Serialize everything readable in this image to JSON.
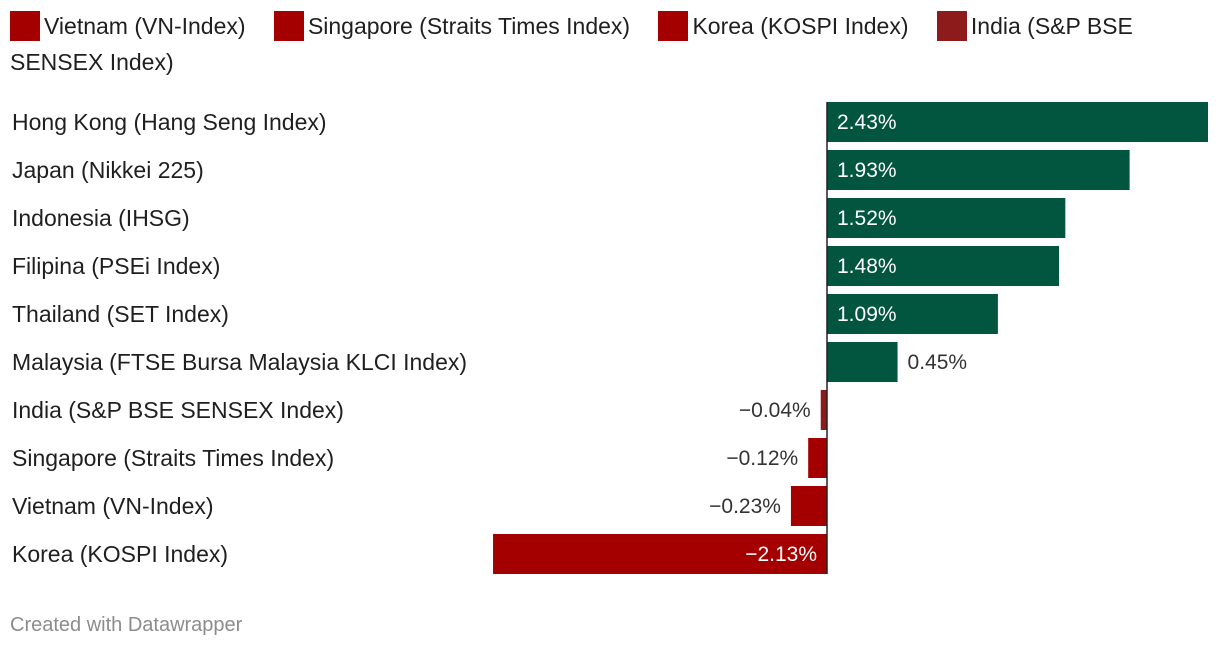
{
  "chart_data": {
    "type": "bar",
    "orientation": "horizontal",
    "legend": [
      {
        "label": "Vietnam (VN-Index)",
        "color": "#a50000"
      },
      {
        "label": "Singapore (Straits Times Index)",
        "color": "#a50000"
      },
      {
        "label": "Korea (KOSPI Index)",
        "color": "#a50000"
      },
      {
        "label": "India (S&P BSE SENSEX Index)",
        "color": "#8d1b1b"
      }
    ],
    "categories": [
      "Hong Kong (Hang Seng Index)",
      "Japan (Nikkei 225)",
      "Indonesia (IHSG)",
      "Filipina (PSEi Index)",
      "Thailand (SET Index)",
      "Malaysia (FTSE Bursa Malaysia KLCI Index)",
      "India (S&P BSE SENSEX Index)",
      "Singapore (Straits Times Index)",
      "Vietnam (VN-Index)",
      "Korea (KOSPI Index)"
    ],
    "values": [
      2.43,
      1.93,
      1.52,
      1.48,
      1.09,
      0.45,
      -0.04,
      -0.12,
      -0.23,
      -2.13
    ],
    "value_labels": [
      "2.43%",
      "1.93%",
      "1.52%",
      "1.48%",
      "1.09%",
      "0.45%",
      "−0.04%",
      "−0.12%",
      "−0.23%",
      "−2.13%"
    ],
    "bar_colors": [
      "#02553f",
      "#02553f",
      "#02553f",
      "#02553f",
      "#02553f",
      "#02553f",
      "#8d1b1b",
      "#a50000",
      "#a50000",
      "#a50000"
    ],
    "unit": "%"
  },
  "footer": {
    "credit": "Created with Datawrapper"
  }
}
